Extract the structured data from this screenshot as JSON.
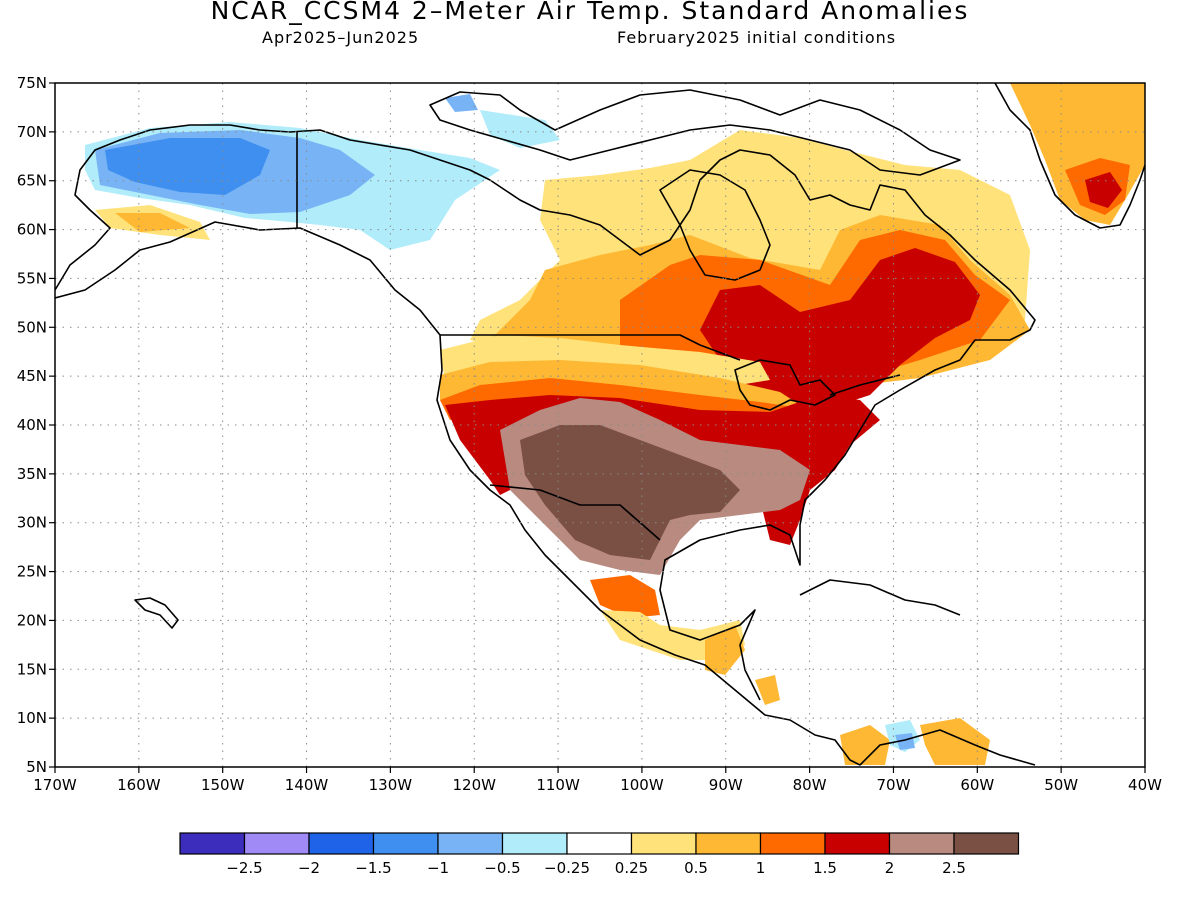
{
  "title": "NCAR_CCSM4 2–Meter Air Temp. Standard Anomalies",
  "subtitle_left": "Apr2025–Jun2025",
  "subtitle_right": "February2025 initial conditions",
  "map": {
    "lon_range": [
      -170,
      -40
    ],
    "lat_range": [
      5,
      75
    ],
    "lat_ticks": [
      "75N",
      "70N",
      "65N",
      "60N",
      "55N",
      "50N",
      "45N",
      "40N",
      "35N",
      "30N",
      "25N",
      "20N",
      "15N",
      "10N",
      "5N"
    ],
    "lon_ticks": [
      "170W",
      "160W",
      "150W",
      "140W",
      "130W",
      "120W",
      "110W",
      "100W",
      "90W",
      "80W",
      "70W",
      "60W",
      "50W",
      "40W"
    ],
    "grid": "dotted",
    "land_outline_color": "#000000"
  },
  "colorbar": {
    "colors": [
      "#3c2dbc",
      "#a08af5",
      "#1f64e8",
      "#3f8ff0",
      "#78b4f5",
      "#b0ecfa",
      "#ffffff",
      "#ffe27a",
      "#ffb833",
      "#ff6a00",
      "#c80000",
      "#b88a80",
      "#7a4f44"
    ],
    "labels": [
      "−2.5",
      "−2",
      "−1.5",
      "−1",
      "−0.5",
      "−0.25",
      "0.25",
      "0.5",
      "1",
      "1.5",
      "2",
      "2.5"
    ]
  }
}
